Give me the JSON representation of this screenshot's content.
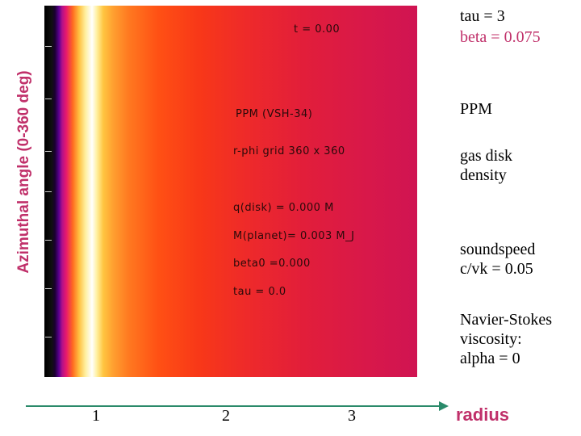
{
  "axis": {
    "y_label": "Azimuthal angle (0-360 deg)",
    "x_ticks": [
      "1",
      "2",
      "3"
    ],
    "x_label": "radius"
  },
  "plot_text": {
    "time": "t =   0.00",
    "method": "PPM (VSH-34)",
    "grid": "r-phi grid 360 x 360",
    "qdisk": "q(disk) = 0.000 M",
    "mplanet": "M(planet)=   0.003 M_J",
    "beta0": "beta0 =0.000",
    "tau": "tau =   0.0"
  },
  "annotations": {
    "tau": "tau = 3",
    "beta": "beta = 0.075",
    "ppm": "PPM",
    "gas_line1": "gas disk",
    "gas_line2": "density",
    "sound_line1": "soundspeed",
    "sound_line2": "c/vk = 0.05",
    "ns_line1": "Navier-Stokes",
    "ns_line2": "viscosity:",
    "ns_line3": "alpha = 0"
  },
  "colors": {
    "accent": "#c0306a",
    "axis_line": "#2a8a6a"
  }
}
